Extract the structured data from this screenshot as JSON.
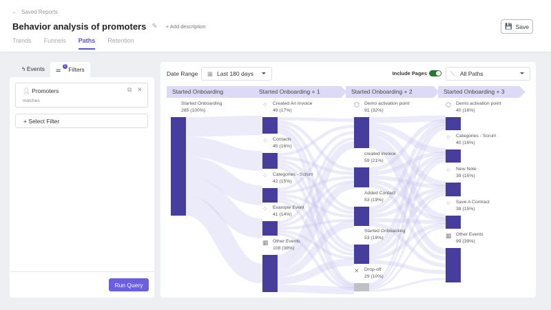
{
  "header": {
    "back_label": "Saved Reports",
    "title": "Behavior analysis of promoters",
    "add_description": "Add description",
    "save_label": "Save",
    "tabs": [
      {
        "label": "Trends"
      },
      {
        "label": "Funnels"
      },
      {
        "label": "Paths",
        "active": true
      },
      {
        "label": "Retention"
      }
    ]
  },
  "left": {
    "tabs": [
      {
        "label": "Events"
      },
      {
        "label": "Filters",
        "badge": "1"
      }
    ],
    "filter": {
      "name": "Promoters",
      "condition": "matches"
    },
    "select_filter": "Select Filter",
    "run_query": "Run Query"
  },
  "toolbar": {
    "date_range_label": "Date Range",
    "date_range_value": "Last 180 days",
    "include_pages_label": "Include Pages",
    "include_pages": true,
    "paths_value": "All Paths"
  },
  "accent": "#473d9c",
  "columns": [
    {
      "title": "Started Onboarding",
      "nodes": [
        {
          "name": "Started Onboarding",
          "value": "285 (100%)",
          "icon": "code-icon"
        }
      ]
    },
    {
      "title": "Started Onboarding + 1",
      "nodes": [
        {
          "name": "Created An Invoice",
          "value": "49 (17%)",
          "icon": "click-icon"
        },
        {
          "name": "Contacts",
          "value": "45 (16%)",
          "icon": "click-icon"
        },
        {
          "name": "Categories - Scrum",
          "value": "42 (15%)",
          "icon": "click-icon"
        },
        {
          "name": "Example Event",
          "value": "41 (14%)",
          "icon": "click-icon"
        },
        {
          "name": "Other Events",
          "value": "108 (38%)",
          "icon": "grid-icon"
        }
      ]
    },
    {
      "title": "Started Onboarding + 2",
      "nodes": [
        {
          "name": "Demo activation point",
          "value": "91 (32%)",
          "icon": "cube-icon"
        },
        {
          "name": "created invoice",
          "value": "59 (21%)",
          "icon": "code-icon"
        },
        {
          "name": "Added Contact",
          "value": "53 (19%)",
          "icon": "code-icon"
        },
        {
          "name": "Started Onboarding",
          "value": "53 (19%)",
          "icon": "code-icon"
        },
        {
          "name": "Drop-off",
          "value": "29 (10%)",
          "icon": "x-icon",
          "dropoff": true
        }
      ]
    },
    {
      "title": "Started Onboarding + 3",
      "nodes": [
        {
          "name": "Demo activation point",
          "value": "40 (16%)",
          "icon": "cube-icon"
        },
        {
          "name": "Categories - Scrum",
          "value": "40 (16%)",
          "icon": "click-icon"
        },
        {
          "name": "New Note",
          "value": "39 (15%)",
          "icon": "click-icon"
        },
        {
          "name": "Save A Contract",
          "value": "38 (15%)",
          "icon": "click-icon"
        },
        {
          "name": "Other Events",
          "value": "99 (39%)",
          "icon": "grid-icon"
        }
      ]
    }
  ]
}
